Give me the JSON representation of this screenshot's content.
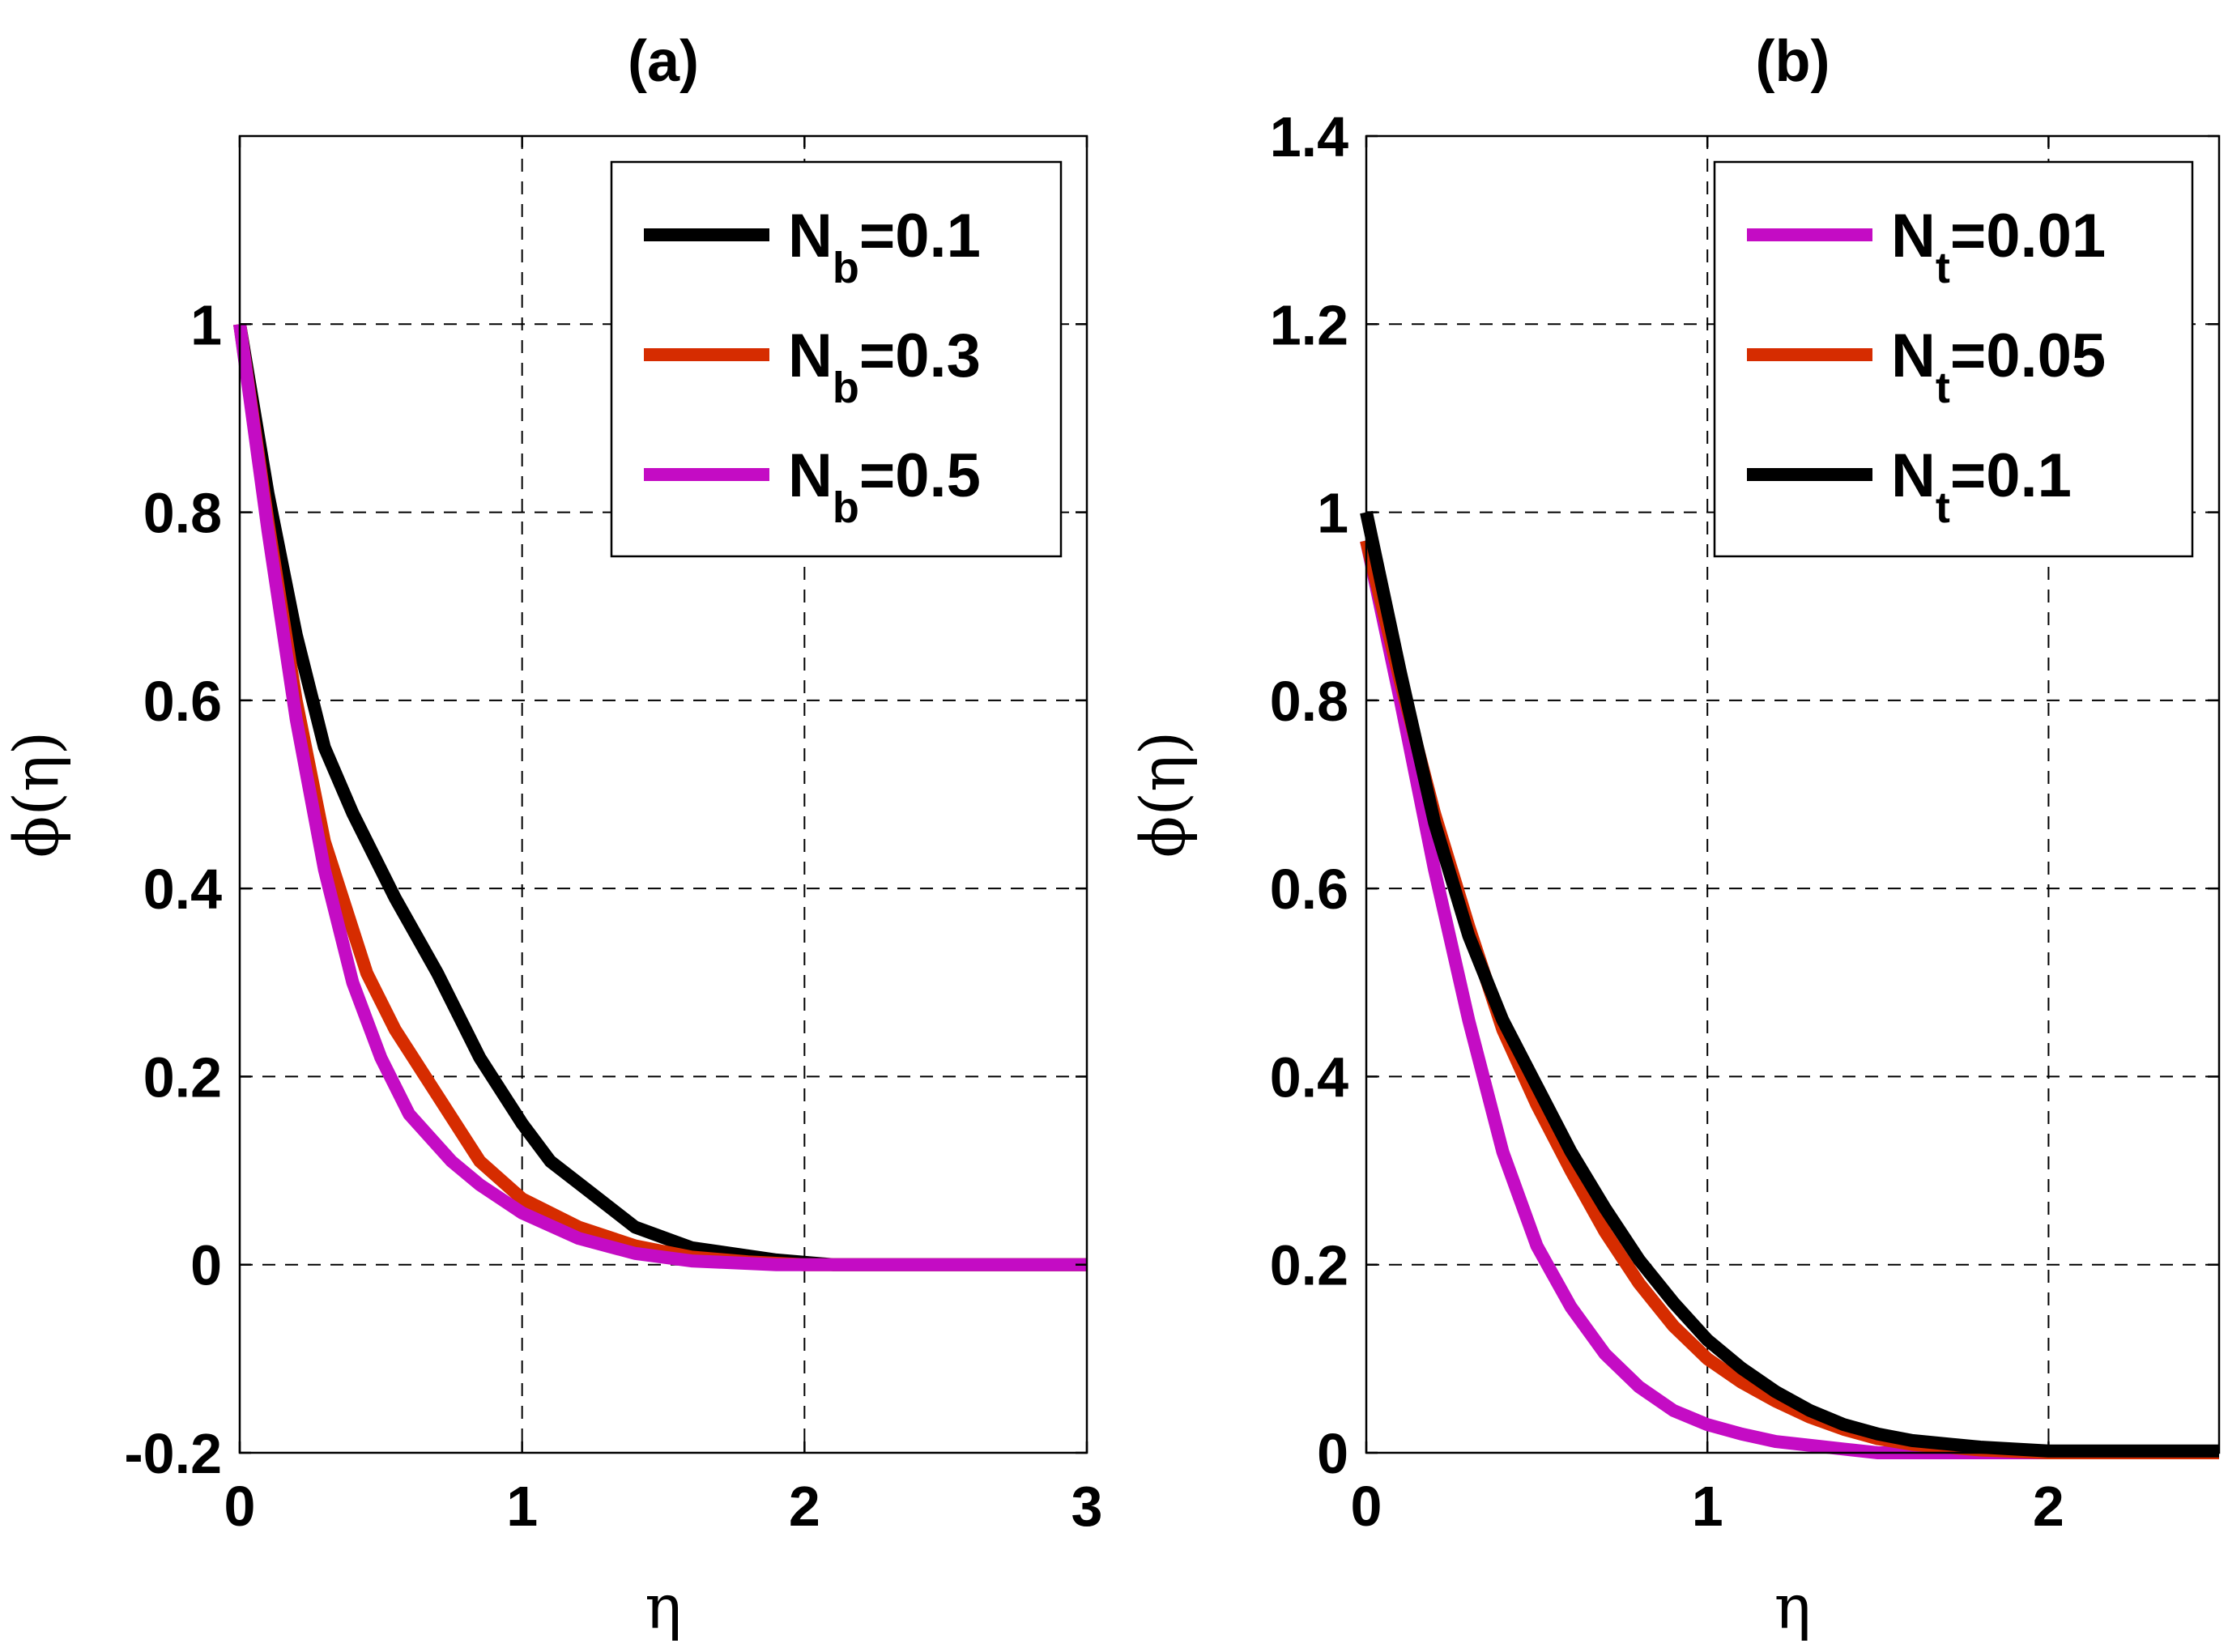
{
  "chart_data": [
    {
      "type": "line",
      "title": "(a)",
      "xlabel": "η",
      "ylabel": "ϕ(η)",
      "xlim": [
        0,
        3
      ],
      "ylim": [
        -0.2,
        1.2
      ],
      "xticks": [
        0,
        1,
        2,
        3
      ],
      "xtick_labels": [
        "0",
        "1",
        "2",
        "3"
      ],
      "yticks": [
        -0.2,
        0,
        0.2,
        0.4,
        0.6,
        0.8,
        1
      ],
      "ytick_labels": [
        "-0.2",
        "0",
        "0.2",
        "0.4",
        "0.6",
        "0.8",
        "1"
      ],
      "grid": true,
      "legend_position": "top-right",
      "series": [
        {
          "name": "Nb=0.1",
          "legend_main": "N",
          "legend_sub": "b",
          "legend_rest": "=0.1",
          "color": "#000000",
          "x": [
            0,
            0.1,
            0.2,
            0.3,
            0.4,
            0.55,
            0.7,
            0.85,
            1.0,
            1.1,
            1.25,
            1.4,
            1.6,
            1.9,
            2.1,
            3.0
          ],
          "y": [
            1,
            0.82,
            0.67,
            0.55,
            0.48,
            0.39,
            0.31,
            0.22,
            0.15,
            0.11,
            0.075,
            0.04,
            0.018,
            0.005,
            0.0,
            0.0
          ]
        },
        {
          "name": "Nb=0.3",
          "legend_main": "N",
          "legend_sub": "b",
          "legend_rest": "=0.3",
          "color": "#d62c00",
          "x": [
            0,
            0.1,
            0.2,
            0.3,
            0.45,
            0.55,
            0.7,
            0.85,
            1.0,
            1.2,
            1.4,
            1.6,
            1.8,
            2.0,
            3.0
          ],
          "y": [
            1,
            0.79,
            0.6,
            0.45,
            0.31,
            0.25,
            0.18,
            0.11,
            0.07,
            0.04,
            0.02,
            0.008,
            0.003,
            0.0,
            0.0
          ]
        },
        {
          "name": "Nb=0.5",
          "legend_main": "N",
          "legend_sub": "b",
          "legend_rest": "=0.5",
          "color": "#c40cc4",
          "x": [
            0,
            0.1,
            0.2,
            0.3,
            0.4,
            0.5,
            0.6,
            0.75,
            0.85,
            1.0,
            1.2,
            1.4,
            1.6,
            1.9,
            2.1,
            3.0
          ],
          "y": [
            1,
            0.78,
            0.58,
            0.42,
            0.3,
            0.22,
            0.16,
            0.11,
            0.085,
            0.055,
            0.028,
            0.012,
            0.004,
            0.0,
            0.0,
            0.0
          ]
        }
      ]
    },
    {
      "type": "line",
      "title": "(b)",
      "xlabel": "η",
      "ylabel": "ϕ(η)",
      "xlim": [
        0,
        2.5
      ],
      "ylim": [
        0,
        1.4
      ],
      "xticks": [
        0,
        1,
        2
      ],
      "xtick_labels": [
        "0",
        "1",
        "2"
      ],
      "yticks": [
        0,
        0.2,
        0.4,
        0.6,
        0.8,
        1,
        1.2,
        1.4
      ],
      "ytick_labels": [
        "0",
        "0.2",
        "0.4",
        "0.6",
        "0.8",
        "1",
        "1.2",
        "1.4"
      ],
      "grid": true,
      "legend_position": "top-right",
      "series": [
        {
          "name": "Nt=0.01",
          "legend_main": "N",
          "legend_sub": "t",
          "legend_rest": "=0.01",
          "color": "#c40cc4",
          "x": [
            0,
            0.1,
            0.2,
            0.3,
            0.4,
            0.5,
            0.6,
            0.7,
            0.8,
            0.9,
            1.0,
            1.1,
            1.2,
            1.4,
            1.5,
            2.5
          ],
          "y": [
            0.97,
            0.8,
            0.62,
            0.46,
            0.32,
            0.22,
            0.155,
            0.105,
            0.07,
            0.045,
            0.03,
            0.02,
            0.012,
            0.004,
            0.0,
            0.0
          ]
        },
        {
          "name": "Nt=0.05",
          "legend_main": "N",
          "legend_sub": "t",
          "legend_rest": "=0.05",
          "color": "#d62c00",
          "x": [
            0,
            0.1,
            0.2,
            0.3,
            0.4,
            0.5,
            0.6,
            0.7,
            0.8,
            0.9,
            1.0,
            1.1,
            1.2,
            1.3,
            1.4,
            1.5,
            1.6,
            1.8,
            2.0,
            2.5
          ],
          "y": [
            0.97,
            0.82,
            0.68,
            0.56,
            0.45,
            0.37,
            0.3,
            0.235,
            0.18,
            0.135,
            0.1,
            0.075,
            0.055,
            0.038,
            0.025,
            0.015,
            0.009,
            0.003,
            0.0,
            0.0
          ]
        },
        {
          "name": "Nt=0.1",
          "legend_main": "N",
          "legend_sub": "t",
          "legend_rest": "=0.1",
          "color": "#000000",
          "x": [
            0,
            0.1,
            0.2,
            0.3,
            0.4,
            0.5,
            0.6,
            0.7,
            0.8,
            0.9,
            1.0,
            1.1,
            1.2,
            1.3,
            1.4,
            1.5,
            1.6,
            1.8,
            2.0,
            2.5
          ],
          "y": [
            1.0,
            0.83,
            0.67,
            0.55,
            0.46,
            0.39,
            0.32,
            0.26,
            0.205,
            0.16,
            0.12,
            0.09,
            0.065,
            0.045,
            0.03,
            0.02,
            0.013,
            0.006,
            0.002,
            0.002
          ]
        }
      ]
    }
  ]
}
